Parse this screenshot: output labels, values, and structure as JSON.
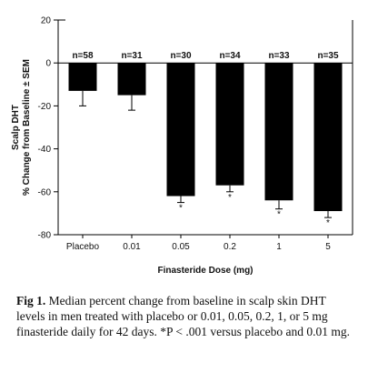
{
  "chart_data": {
    "type": "bar",
    "categories": [
      "Placebo",
      "0.01",
      "0.05",
      "0.2",
      "1",
      "5"
    ],
    "values": [
      -13,
      -15,
      -62,
      -57,
      -64,
      -69
    ],
    "errors": [
      7,
      7,
      3,
      3,
      4,
      3
    ],
    "n_labels": [
      "n=58",
      "n=31",
      "n=30",
      "n=34",
      "n=33",
      "n=35"
    ],
    "significance": [
      "",
      "",
      "*",
      "*",
      "*",
      "*"
    ],
    "ylim": [
      -80,
      20
    ],
    "yticks": [
      20,
      0,
      -20,
      -40,
      -60,
      -80
    ],
    "xlabel": "Finasteride Dose (mg)",
    "ylabel_line1": "Scalp DHT",
    "ylabel_line2": "% Change from Baseline ± SEM",
    "bar_color": "#000000"
  },
  "caption": {
    "figure_label": "Fig 1.",
    "text": " Median percent change from baseline in scalp skin DHT levels in men treated with placebo or 0.01, 0.05, 0.2, 1, or 5 mg finasteride daily for 42 days. *P < .001 versus placebo and 0.01 mg."
  }
}
